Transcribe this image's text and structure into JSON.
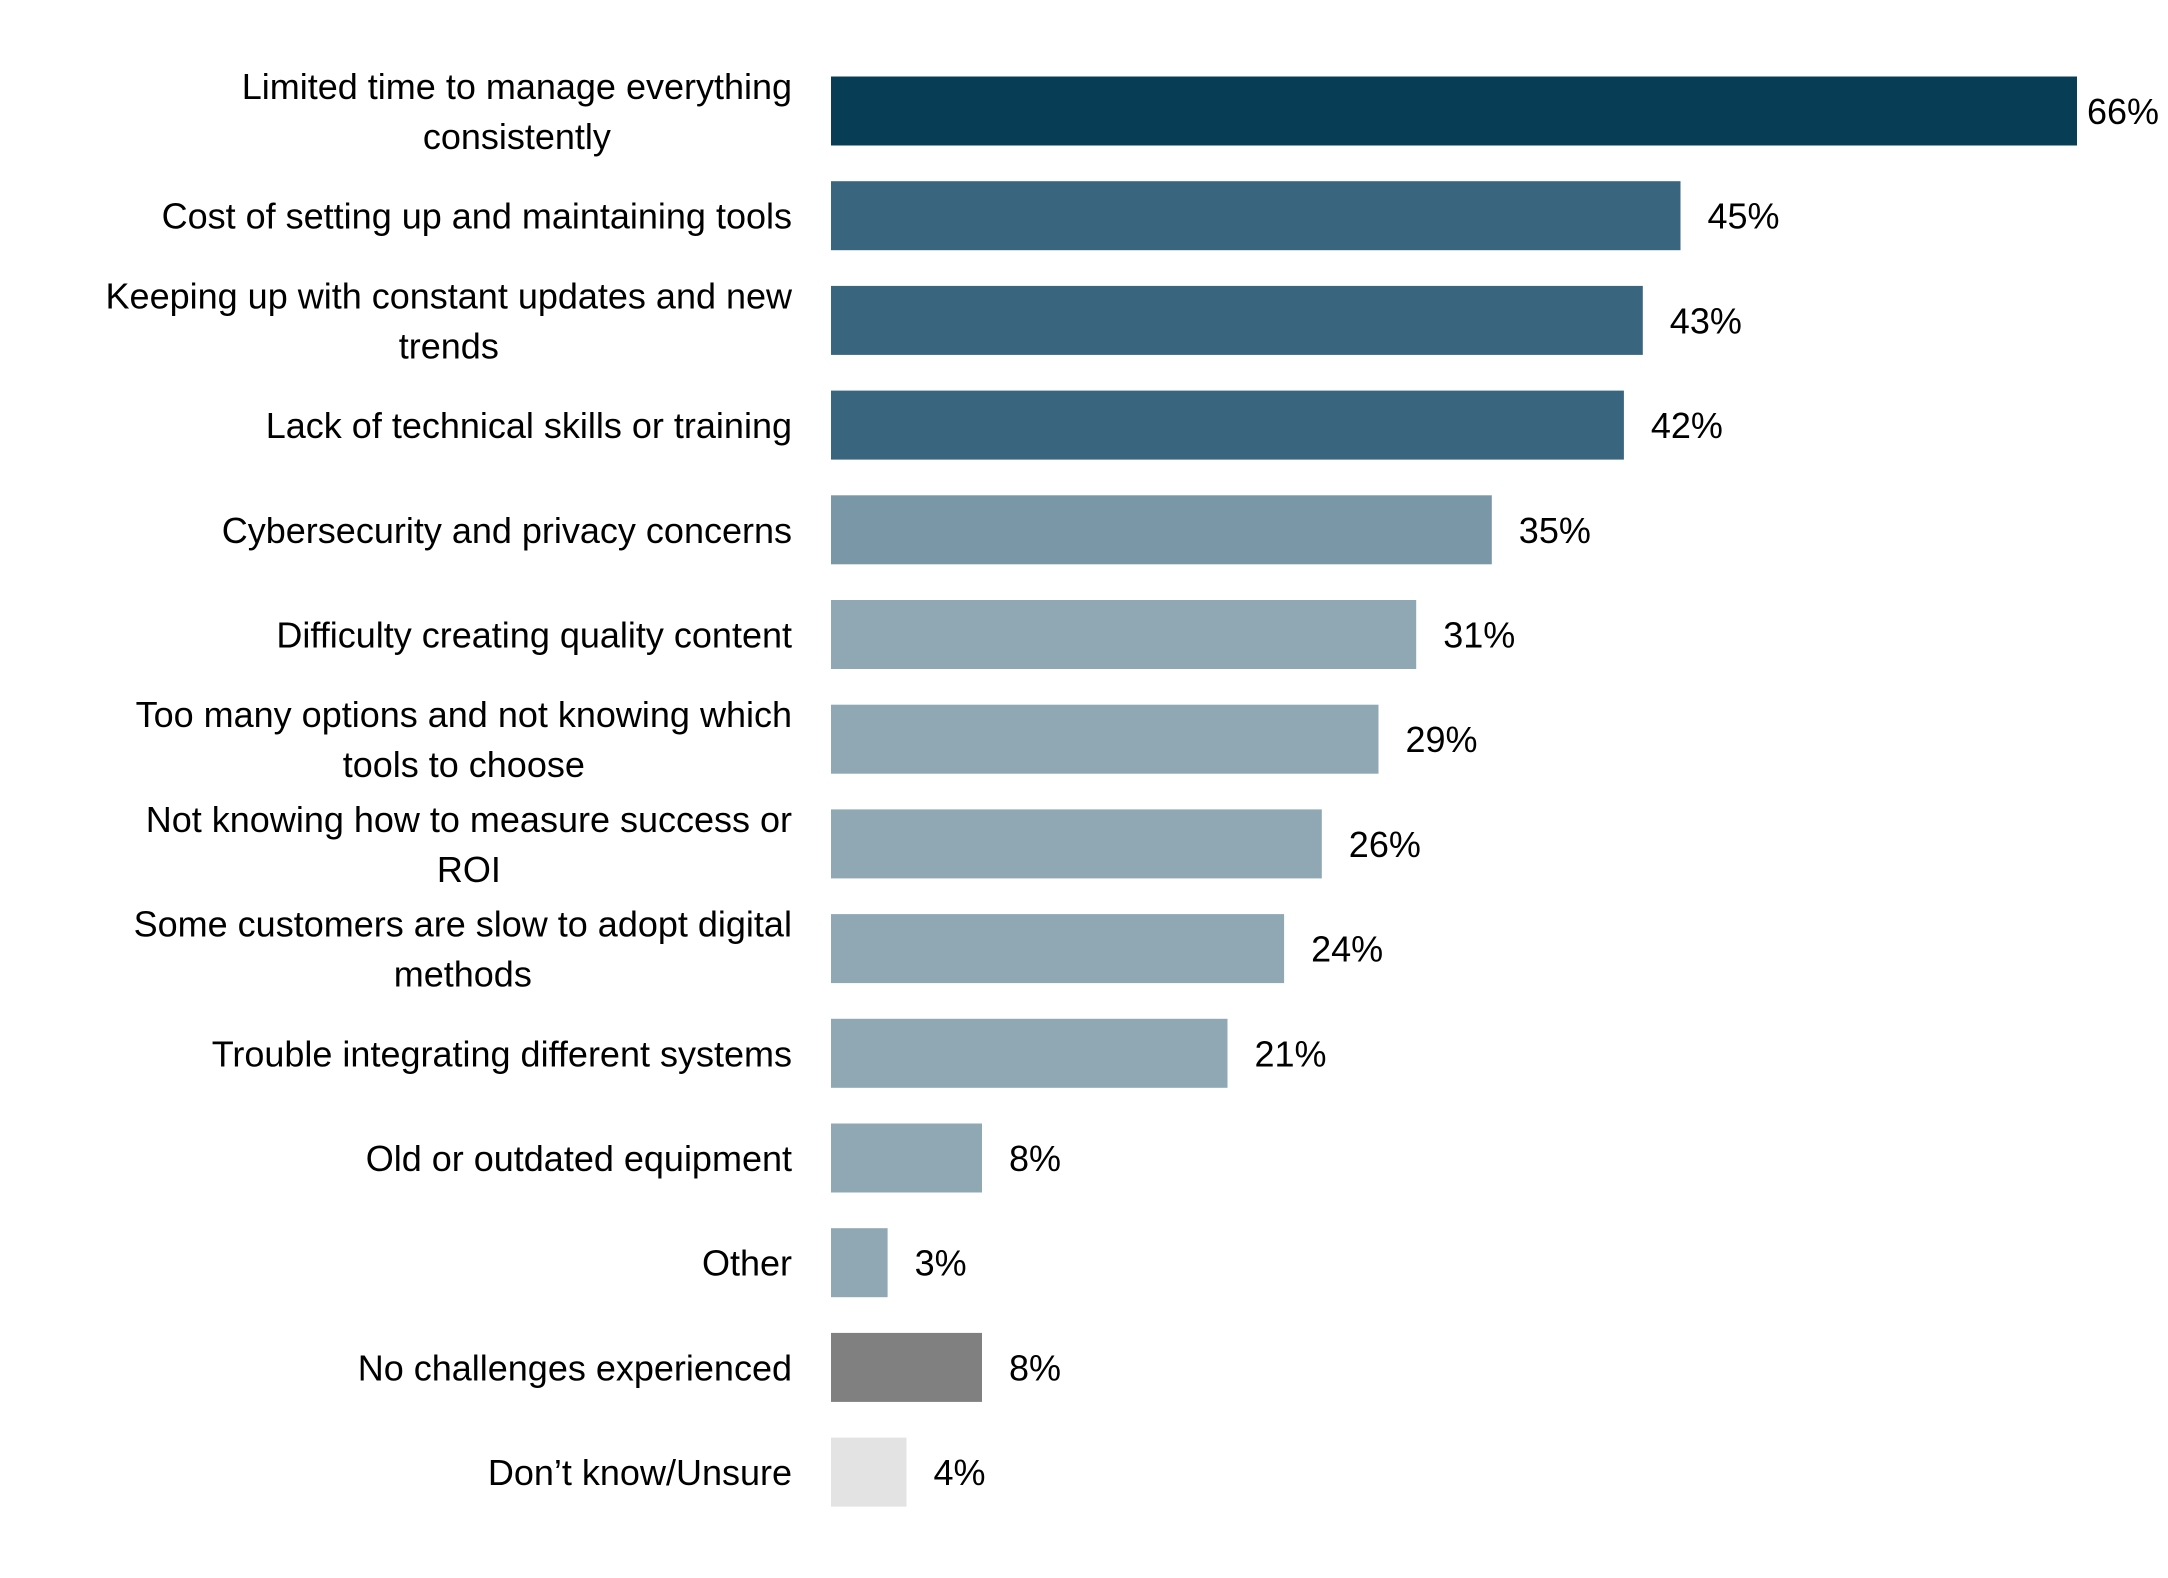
{
  "chart_data": {
    "type": "bar",
    "orientation": "horizontal",
    "title": "",
    "xlabel": "",
    "ylabel": "",
    "unit": "%",
    "xlim": [
      0,
      66
    ],
    "grid": false,
    "legend": "none",
    "categories": [
      "Limited time to manage everything consistently",
      "Cost of setting up and maintaining tools",
      "Keeping up with constant updates and new trends",
      "Lack of technical skills or training",
      "Cybersecurity and privacy concerns",
      "Difficulty creating quality content",
      "Too many options and not knowing which tools to choose",
      "Not knowing how to measure success or ROI",
      "Some customers are slow to adopt digital methods",
      "Trouble integrating different systems",
      "Old or outdated equipment",
      "Other",
      "No challenges experienced",
      "Don’t know/Unsure"
    ],
    "label_lines": [
      [
        "Limited time to manage everything",
        "consistently"
      ],
      [
        "Cost of setting up and maintaining tools"
      ],
      [
        "Keeping up with constant updates and new",
        "trends"
      ],
      [
        "Lack of technical skills or training"
      ],
      [
        "Cybersecurity and privacy concerns"
      ],
      [
        "Difficulty creating quality content"
      ],
      [
        "Too many options and not knowing which",
        "tools to choose"
      ],
      [
        "Not knowing how to measure success or",
        "ROI"
      ],
      [
        "Some customers are slow to adopt digital",
        "methods"
      ],
      [
        "Trouble integrating different systems"
      ],
      [
        "Old or outdated equipment"
      ],
      [
        "Other"
      ],
      [
        "No challenges experienced"
      ],
      [
        "Don’t know/Unsure"
      ]
    ],
    "values": [
      66,
      45,
      43,
      42,
      35,
      31,
      29,
      26,
      24,
      21,
      8,
      3,
      8,
      4
    ],
    "value_labels": [
      "66%",
      "45%",
      "43%",
      "42%",
      "35%",
      "31%",
      "29%",
      "26%",
      "24%",
      "21%",
      "8%",
      "3%",
      "8%",
      "4%"
    ],
    "colors": [
      "#083d56",
      "#39657f",
      "#39657f",
      "#39657f",
      "#7a97a8",
      "#8fa8b4",
      "#8fa8b4",
      "#8fa8b4",
      "#8fa8b4",
      "#8fa8b4",
      "#8fa8b4",
      "#8fa8b4",
      "#808080",
      "#e3e3e3"
    ]
  }
}
